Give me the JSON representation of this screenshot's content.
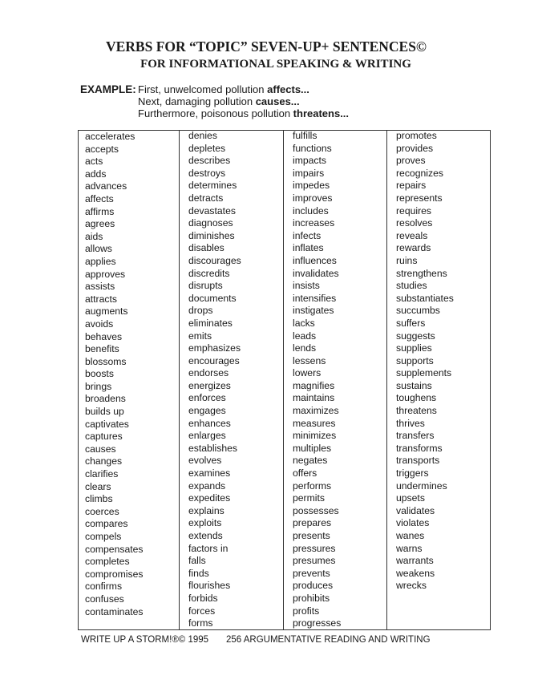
{
  "title": "VERBS FOR “TOPIC” SEVEN-UP+ SENTENCES©",
  "subtitle": "FOR INFORMATIONAL SPEAKING & WRITING",
  "example": {
    "label": "EXAMPLE:",
    "lines": [
      {
        "text": "First, unwelcomed pollution ",
        "verb": "affects..."
      },
      {
        "text": "Next, damaging pollution ",
        "verb": "causes..."
      },
      {
        "text": "Furthermore, poisonous pollution ",
        "verb": "threatens..."
      }
    ]
  },
  "columns": [
    [
      "accelerates",
      "accepts",
      "acts",
      "adds",
      "advances",
      "affects",
      "affirms",
      "agrees",
      "aids",
      "allows",
      "applies",
      "approves",
      "assists",
      "attracts",
      "augments",
      "avoids",
      "behaves",
      "benefits",
      "blossoms",
      "boosts",
      "brings",
      "broadens",
      "builds up",
      "captivates",
      "captures",
      "causes",
      "changes",
      "clarifies",
      "clears",
      "climbs",
      "coerces",
      "compares",
      "compels",
      "compensates",
      "completes",
      "compromises",
      "confirms",
      "confuses",
      "contaminates"
    ],
    [
      "denies",
      "depletes",
      "describes",
      "destroys",
      "determines",
      "detracts",
      "devastates",
      "diagnoses",
      "diminishes",
      "disables",
      "discourages",
      "discredits",
      "disrupts",
      "documents",
      "drops",
      "eliminates",
      "emits",
      "emphasizes",
      "encourages",
      "endorses",
      "energizes",
      "enforces",
      "engages",
      "enhances",
      "enlarges",
      "establishes",
      "evolves",
      "examines",
      "expands",
      "expedites",
      "explains",
      "exploits",
      "extends",
      "factors in",
      "falls",
      "finds",
      "flourishes",
      "forbids",
      "forces",
      "forms"
    ],
    [
      "fulfills",
      "functions",
      "impacts",
      "impairs",
      "impedes",
      "improves",
      "includes",
      "increases",
      "infects",
      "inflates",
      "influences",
      "invalidates",
      "insists",
      "intensifies",
      "instigates",
      "lacks",
      "leads",
      "lends",
      "lessens",
      "lowers",
      "magnifies",
      "maintains",
      "maximizes",
      "measures",
      "minimizes",
      "multiples",
      "negates",
      "offers",
      "performs",
      "permits",
      "possesses",
      "prepares",
      "presents",
      "pressures",
      "presumes",
      "prevents",
      "produces",
      "prohibits",
      "profits",
      "progresses"
    ],
    [
      "promotes",
      "provides",
      "proves",
      "recognizes",
      "repairs",
      "represents",
      "requires",
      "resolves",
      "reveals",
      "rewards",
      "ruins",
      "strengthens",
      "studies",
      "substantiates",
      "succumbs",
      "suffers",
      "suggests",
      "supplies",
      "supports",
      "supplements",
      "sustains",
      "toughens",
      "threatens",
      "thrives",
      "transfers",
      "transforms",
      "transports",
      "triggers",
      "undermines",
      "upsets",
      "validates",
      "violates",
      "wanes",
      "warns",
      "warrants",
      "weakens",
      "wrecks"
    ]
  ],
  "footer": {
    "left": "WRITE UP A STORM!®© 1995",
    "right": "256  ARGUMENTATIVE READING AND WRITING"
  }
}
